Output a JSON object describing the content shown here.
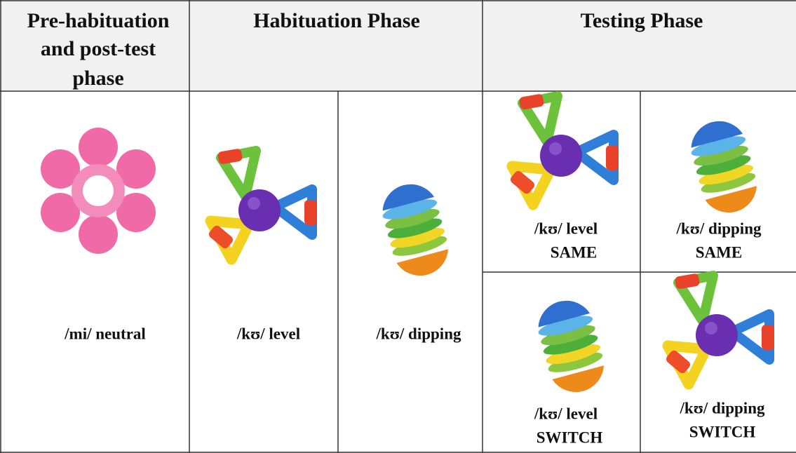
{
  "header": {
    "columns": [
      {
        "lines": [
          "Pre-habituation",
          "and post-test",
          "phase"
        ]
      },
      {
        "title": "Habituation Phase"
      },
      {
        "title": "Testing Phase"
      }
    ]
  },
  "cells": [
    {
      "label": "/mi/ neutral"
    },
    {
      "label": "/kʊ/ level"
    },
    {
      "label": "/kʊ/ dipping"
    },
    {
      "label": "/kʊ/ level",
      "condition": "SAME"
    },
    {
      "label": "/kʊ/ dipping",
      "condition": "SAME"
    },
    {
      "label": "/kʊ/ level",
      "condition": "SWITCH"
    },
    {
      "label": "/kʊ/ dipping",
      "condition": "SWITCH"
    }
  ]
}
